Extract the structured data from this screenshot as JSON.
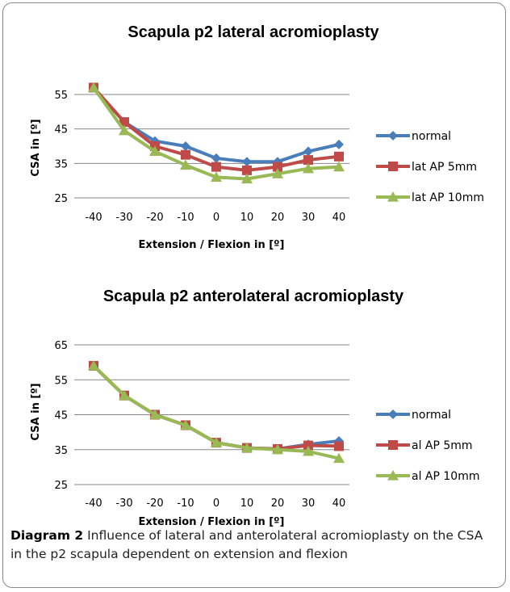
{
  "colors": {
    "normal": "#4a7ebb",
    "ap5": "#be4b48",
    "ap10": "#98b954",
    "grid": "#878787",
    "err": "#000000"
  },
  "chart_data": [
    {
      "type": "line",
      "title": "Scapula p2 lateral acromioplasty",
      "xlabel": "Extension / Flexion in [º]",
      "ylabel": "CSA in [º]",
      "x": [
        -40,
        -30,
        -20,
        -10,
        0,
        10,
        20,
        30,
        40
      ],
      "yticks": [
        25,
        35,
        45,
        55
      ],
      "ylim": [
        25,
        60
      ],
      "grid": true,
      "legend_position": "right",
      "series": [
        {
          "name": "normal",
          "marker": "diamond",
          "values": [
            57,
            47,
            41.5,
            40,
            36.5,
            35.5,
            35.5,
            38.5,
            40.5
          ]
        },
        {
          "name": "lat AP 5mm",
          "marker": "square",
          "values": [
            57,
            47,
            40,
            37.5,
            34,
            33,
            34,
            36,
            37
          ]
        },
        {
          "name": "lat AP 10mm",
          "marker": "triangle",
          "values": [
            57,
            44.5,
            38.5,
            34.5,
            31,
            30.5,
            32,
            33.5,
            34
          ]
        }
      ],
      "error_bar_lows": [
        56,
        45.5,
        38,
        34.5,
        31,
        30,
        31.5,
        32.5,
        33.5
      ]
    },
    {
      "type": "line",
      "title": "Scapula p2 anterolateral acromioplasty",
      "xlabel": "Extension / Flexion in [º]",
      "ylabel": "CSA in [º]",
      "x": [
        -40,
        -30,
        -20,
        -10,
        0,
        10,
        20,
        30,
        40
      ],
      "yticks": [
        25,
        35,
        45,
        55,
        65
      ],
      "ylim": [
        25,
        65
      ],
      "grid": true,
      "legend_position": "right",
      "series": [
        {
          "name": "normal",
          "marker": "diamond",
          "values": [
            59,
            50.5,
            45,
            42,
            37,
            35.5,
            35.2,
            36.5,
            37.5
          ]
        },
        {
          "name": "al AP 5mm",
          "marker": "square",
          "values": [
            59,
            50.5,
            45,
            42,
            37,
            35.5,
            35.2,
            36.2,
            36
          ]
        },
        {
          "name": "al AP 10mm",
          "marker": "triangle",
          "values": [
            59,
            50.5,
            45,
            42,
            37,
            35.5,
            35,
            34.5,
            32.5
          ]
        }
      ],
      "error_bar_lows": [
        58.5,
        50,
        44.5,
        41.5,
        36.5,
        35,
        34.5,
        33.5,
        31.5
      ]
    }
  ],
  "caption": {
    "lead": "Diagram 2",
    "text": " Influence of lateral and anterolateral acromioplasty on the CSA in the p2 scapula dependent on extension and flexion"
  }
}
